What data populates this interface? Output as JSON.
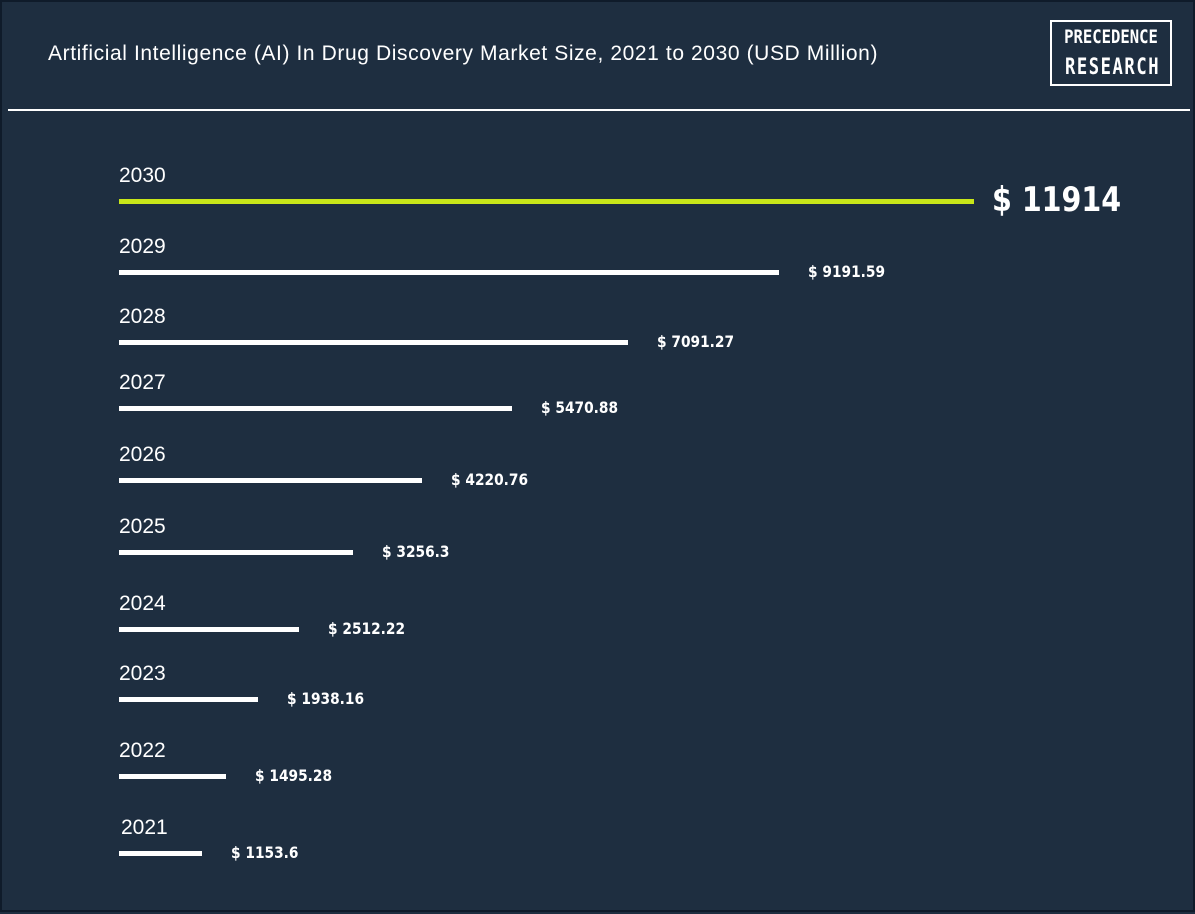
{
  "header": {
    "title": "Artificial Intelligence (AI) In Drug Discovery Market Size, 2021 to 2030 (USD Million)",
    "logo_line1": "PRECEDENCE",
    "logo_line2": "RESEARCH"
  },
  "colors": {
    "background": "#1e2e40",
    "bar": "#ffffff",
    "highlight": "#c8e619",
    "text": "#ffffff"
  },
  "chart_data": {
    "type": "bar",
    "orientation": "horizontal",
    "title": "Artificial Intelligence (AI) In Drug Discovery Market Size, 2021 to 2030 (USD Million)",
    "categories": [
      "2030",
      "2029",
      "2028",
      "2027",
      "2026",
      "2025",
      "2024",
      "2023",
      "2022",
      "2021"
    ],
    "values": [
      11914,
      9191.59,
      7091.27,
      5470.88,
      4220.76,
      3256.3,
      2512.22,
      1938.16,
      1495.28,
      1153.6
    ],
    "value_labels": [
      "$ 11914",
      "$ 9191.59",
      "$ 7091.27",
      "$ 5470.88",
      "$ 4220.76",
      "$ 3256.3",
      "$ 2512.22",
      "$ 1938.16",
      "$ 1495.28",
      "$ 1153.6"
    ],
    "highlighted_category": "2030",
    "xlabel": "",
    "ylabel": "",
    "grid": false,
    "legend": "none"
  }
}
